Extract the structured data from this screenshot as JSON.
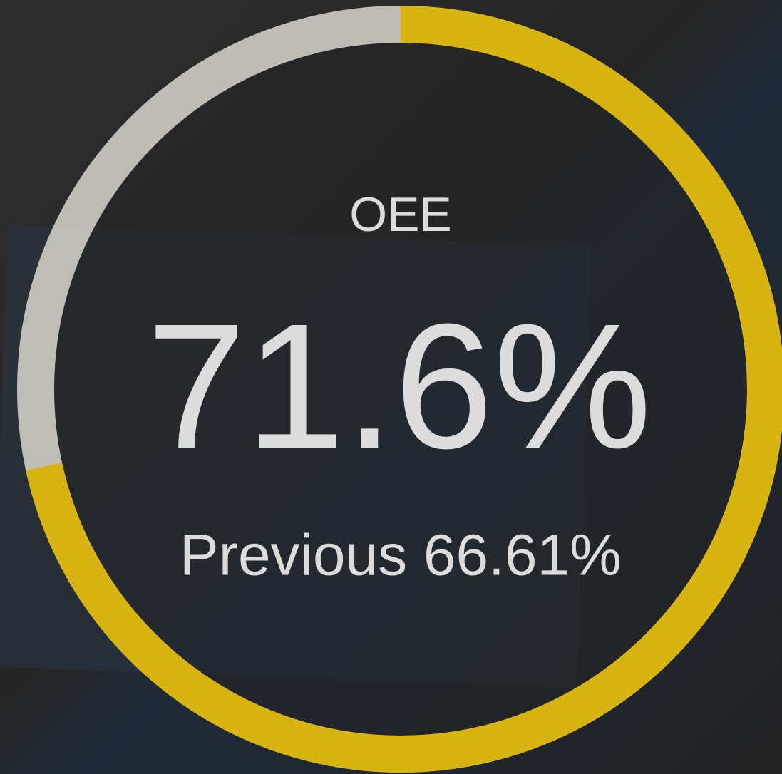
{
  "chart_data": {
    "type": "gauge",
    "title": "OEE",
    "values": [
      71.6
    ],
    "value_labels": [
      "71.6%"
    ],
    "ylim": [
      0,
      100
    ],
    "color": "#d8b412",
    "track_color": "#d8d6cc",
    "annotations": [
      "Previous 66.61%"
    ]
  }
}
